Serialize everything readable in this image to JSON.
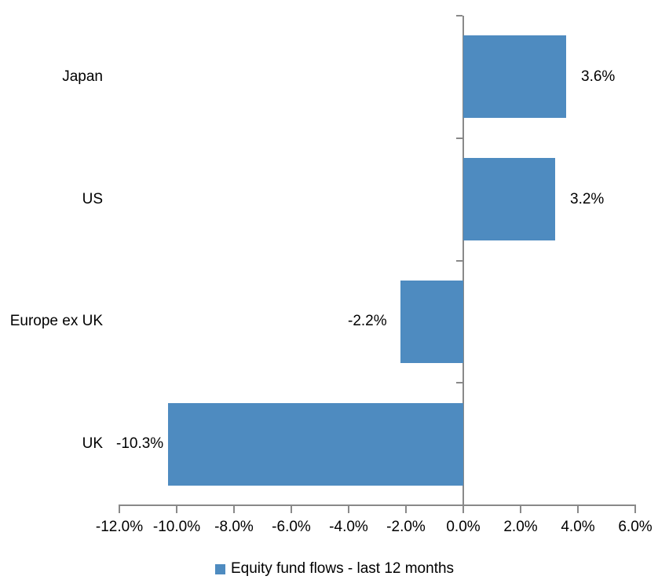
{
  "chart_data": {
    "type": "bar",
    "orientation": "horizontal",
    "categories": [
      "Japan",
      "US",
      "Europe ex UK",
      "UK"
    ],
    "series": [
      {
        "name": "Equity fund flows - last 12 months",
        "values": [
          3.6,
          3.2,
          -2.2,
          -10.3
        ],
        "data_labels": [
          "3.6%",
          "3.2%",
          "-2.2%",
          "-10.3%"
        ]
      }
    ],
    "x_axis": {
      "min": -12,
      "max": 6,
      "tick_step": 2,
      "tick_labels": [
        "-12.0%",
        "-10.0%",
        "-8.0%",
        "-6.0%",
        "-4.0%",
        "-2.0%",
        "0.0%",
        "2.0%",
        "4.0%",
        "6.0%"
      ]
    },
    "grid": false,
    "legend_position": "bottom",
    "colors": {
      "bar": "#4E8BC0",
      "axis": "#898989",
      "text": "#000000",
      "background": "#FFFFFF"
    }
  },
  "legend": {
    "label": "Equity fund flows - last 12 months"
  }
}
